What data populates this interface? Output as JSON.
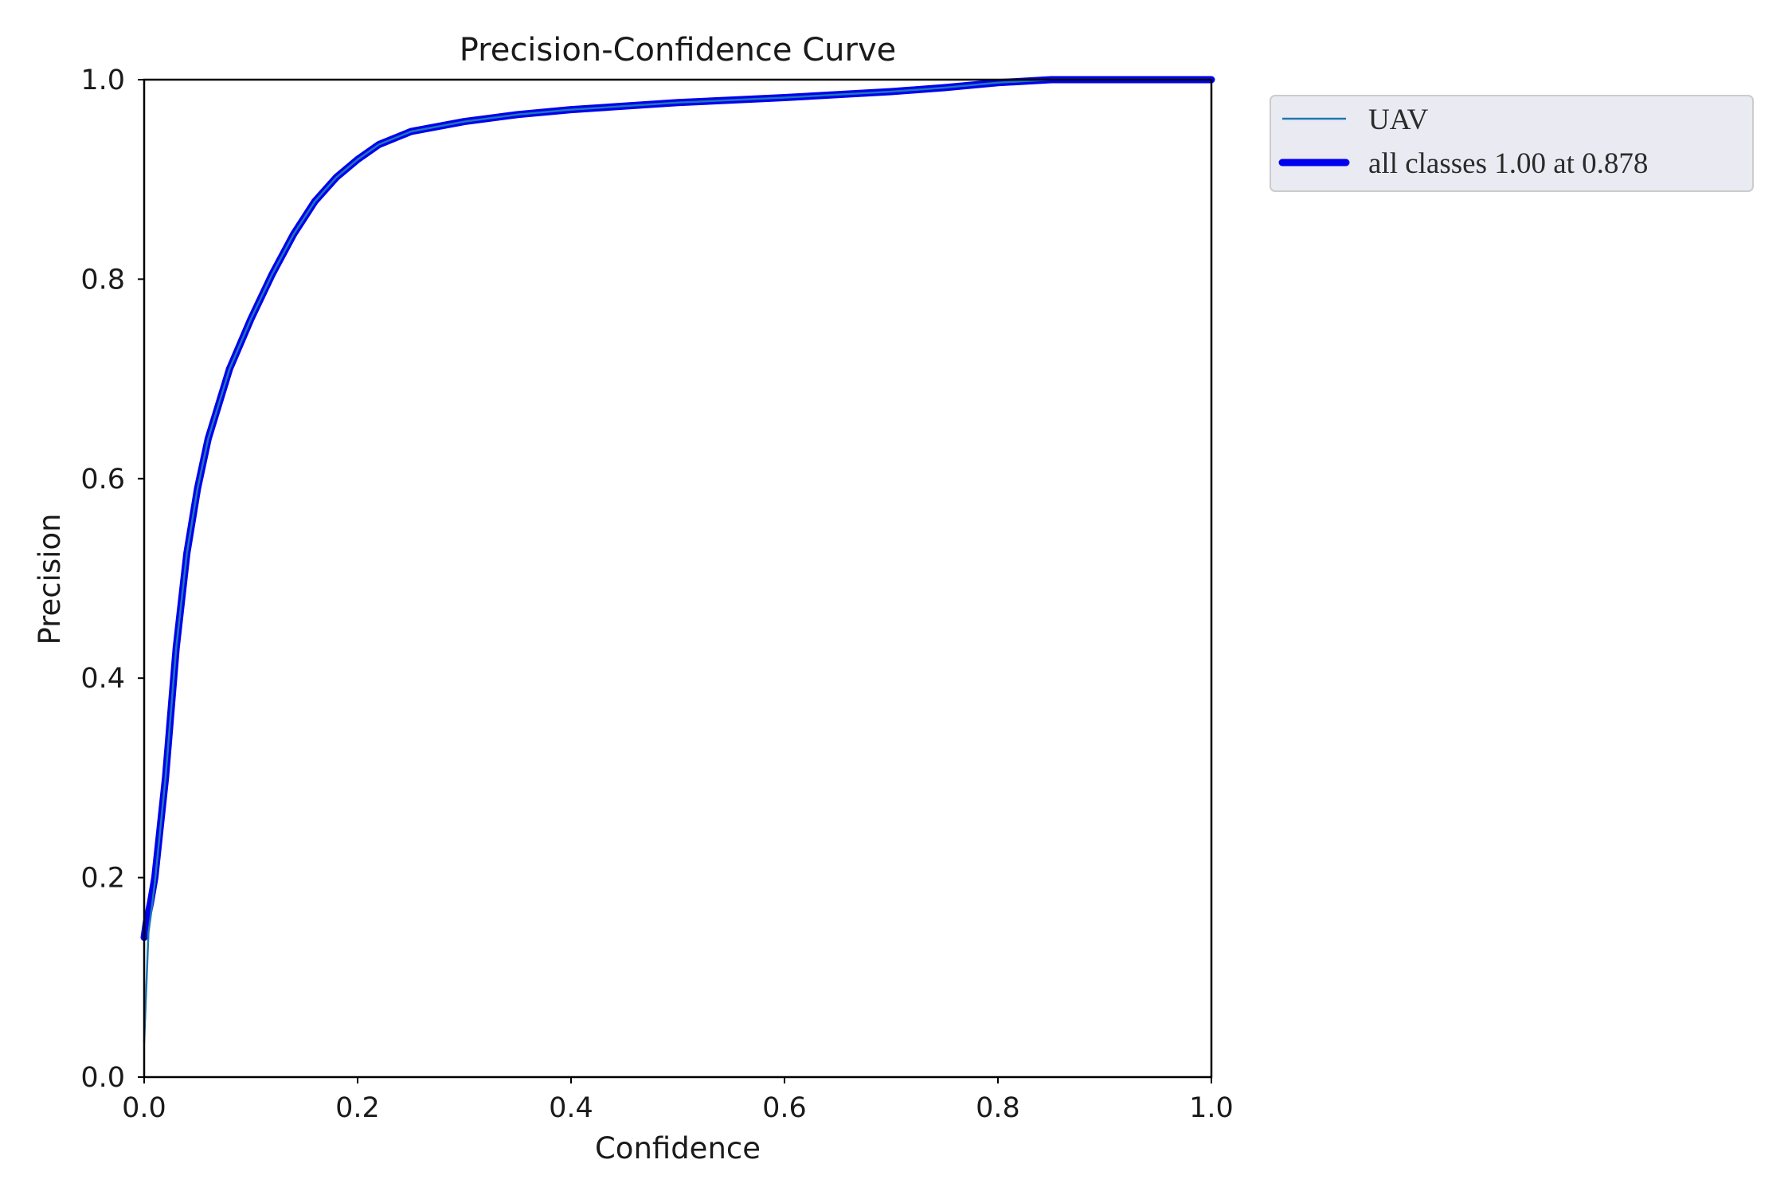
{
  "chart_data": {
    "type": "line",
    "title": "Precision-Confidence Curve",
    "xlabel": "Confidence",
    "ylabel": "Precision",
    "xlim": [
      0.0,
      1.0
    ],
    "ylim": [
      0.0,
      1.0
    ],
    "xticks": [
      "0.0",
      "0.2",
      "0.4",
      "0.6",
      "0.8",
      "1.0"
    ],
    "yticks": [
      "0.0",
      "0.2",
      "0.4",
      "0.6",
      "0.8",
      "1.0"
    ],
    "grid": false,
    "legend_position": "outside top-right",
    "series": [
      {
        "name": "UAV",
        "color": "#1f77b4",
        "style": "thin",
        "x": [
          0.0,
          0.002,
          0.004,
          0.006,
          0.01,
          0.02,
          0.03,
          0.04,
          0.05,
          0.06,
          0.08,
          0.1,
          0.12,
          0.14,
          0.16,
          0.18,
          0.2,
          0.22,
          0.25,
          0.3,
          0.35,
          0.4,
          0.5,
          0.6,
          0.7,
          0.75,
          0.8,
          0.85,
          0.9,
          0.95,
          1.0
        ],
        "y": [
          0.035,
          0.09,
          0.145,
          0.16,
          0.195,
          0.3,
          0.43,
          0.525,
          0.59,
          0.64,
          0.71,
          0.76,
          0.805,
          0.845,
          0.878,
          0.902,
          0.92,
          0.935,
          0.948,
          0.958,
          0.965,
          0.97,
          0.977,
          0.982,
          0.988,
          0.992,
          0.997,
          1.0,
          1.0,
          1.0,
          1.0
        ]
      },
      {
        "name": "all classes 1.00 at 0.878",
        "color": "#0000ee",
        "style": "thick",
        "x": [
          0.0,
          0.002,
          0.004,
          0.006,
          0.01,
          0.02,
          0.03,
          0.04,
          0.05,
          0.06,
          0.08,
          0.1,
          0.12,
          0.14,
          0.16,
          0.18,
          0.2,
          0.22,
          0.25,
          0.3,
          0.35,
          0.4,
          0.5,
          0.6,
          0.7,
          0.75,
          0.8,
          0.85,
          0.9,
          0.95,
          1.0
        ],
        "y": [
          0.14,
          0.155,
          0.165,
          0.175,
          0.2,
          0.3,
          0.43,
          0.525,
          0.59,
          0.64,
          0.71,
          0.76,
          0.805,
          0.845,
          0.878,
          0.902,
          0.92,
          0.935,
          0.948,
          0.958,
          0.965,
          0.97,
          0.977,
          0.982,
          0.988,
          0.992,
          0.997,
          1.0,
          1.0,
          1.0,
          1.0
        ]
      }
    ]
  },
  "colors": {
    "legend_bg": "#eaeaf2",
    "legend_border": "#cccccc",
    "axes": "#000000"
  }
}
